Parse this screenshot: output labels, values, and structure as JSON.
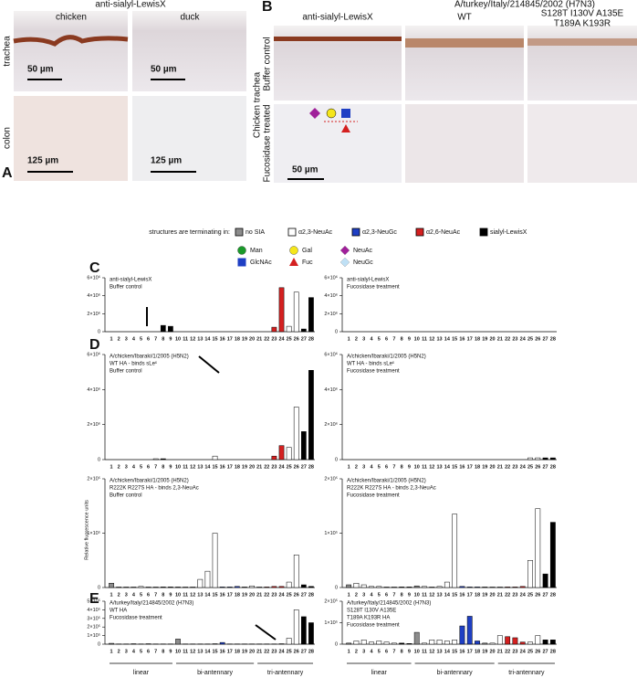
{
  "panel_a": {
    "letter": "A",
    "title": "anti-sialyl-LewisX",
    "columns": [
      "chicken",
      "duck"
    ],
    "rows": [
      "trachea",
      "colon"
    ],
    "scales": [
      "50 µm",
      "50 µm",
      "125 µm",
      "125 µm"
    ]
  },
  "panel_b": {
    "letter": "B",
    "title": "A/turkey/Italy/214845/2002 (H7N3)",
    "columns": [
      "anti-sialyl-LewisX",
      "WT",
      "S128T I130V A135E",
      "T189A K193R"
    ],
    "rows": [
      "Buffer control",
      "Fucosidase treated"
    ],
    "tissue": "Chicken trachea",
    "scale": "50 µm"
  },
  "legend": {
    "title": "structures are terminating in:",
    "items": [
      {
        "label": "no SIA",
        "color": "#8c8c8c"
      },
      {
        "label": "α2,3-NeuAc",
        "color": "#ffffff"
      },
      {
        "label": "α2,3-NeuGc",
        "color": "#1f3fc4"
      },
      {
        "label": "α2,6-NeuAc",
        "color": "#d42020"
      },
      {
        "label": "sialyl-LewisX",
        "color": "#000000"
      }
    ]
  },
  "monosaccharides": [
    {
      "label": "Man",
      "shape": "circle",
      "color": "#1a9a2a"
    },
    {
      "label": "GlcNAc",
      "shape": "square",
      "color": "#1f3fc4"
    },
    {
      "label": "Gal",
      "shape": "circle",
      "color": "#f5e61a"
    },
    {
      "label": "Fuc",
      "shape": "triangle",
      "color": "#d42020"
    },
    {
      "label": "NeuAc",
      "shape": "diamond",
      "color": "#a0209a"
    },
    {
      "label": "NeuGc",
      "shape": "diamond",
      "color": "#bfe0f5"
    }
  ],
  "panel_letters": [
    "C",
    "D",
    "E"
  ],
  "y_axis_label": "Relative fluorescence units",
  "bar_colors": [
    "#8c8c8c",
    "#ffffff",
    "#ffffff",
    "#ffffff",
    "#ffffff",
    "#ffffff",
    "#ffffff",
    "#000000",
    "#000000",
    "#8c8c8c",
    "#ffffff",
    "#ffffff",
    "#ffffff",
    "#ffffff",
    "#ffffff",
    "#1f3fc4",
    "#1f3fc4",
    "#1f3fc4",
    "#8c8c8c",
    "#ffffff",
    "#ffffff",
    "#d42020",
    "#d42020",
    "#d42020",
    "#ffffff",
    "#ffffff",
    "#000000",
    "#000000"
  ],
  "groups": [
    "linear",
    "bi-antennary",
    "tri-antennary"
  ],
  "chart_data": [
    {
      "type": "bar",
      "labels": [
        "anti-sialyl-LewisX",
        "Buffer control"
      ],
      "categories": [
        "1",
        "2",
        "3",
        "4",
        "5",
        "6",
        "7",
        "8",
        "9",
        "10",
        "11",
        "12",
        "13",
        "14",
        "15",
        "16",
        "17",
        "18",
        "19",
        "20",
        "21",
        "22",
        "23",
        "24",
        "25",
        "26",
        "27",
        "28"
      ],
      "values": [
        0,
        0,
        0,
        0,
        0,
        0,
        0,
        700000,
        600000,
        0,
        0,
        0,
        0,
        0,
        0,
        0,
        0,
        0,
        0,
        0,
        0,
        0,
        500000,
        4900000,
        600000,
        4400000,
        300000,
        3800000
      ],
      "ylim": [
        0,
        6000000
      ],
      "yticks": [
        0,
        {
          "value": 2000000,
          "label": "2×10⁶"
        },
        {
          "value": 4000000,
          "label": "4×10⁶"
        },
        {
          "value": 6000000,
          "label": "6×10⁶"
        }
      ]
    },
    {
      "type": "bar",
      "labels": [
        "anti-sialyl-LewisX",
        "Fucosidase treatment"
      ],
      "categories": [
        "1",
        "2",
        "3",
        "4",
        "5",
        "6",
        "7",
        "8",
        "9",
        "10",
        "11",
        "12",
        "13",
        "14",
        "15",
        "16",
        "17",
        "18",
        "19",
        "20",
        "21",
        "22",
        "23",
        "24",
        "25",
        "26",
        "27",
        "28"
      ],
      "values": [
        0,
        0,
        0,
        0,
        0,
        0,
        0,
        0,
        0,
        0,
        0,
        0,
        0,
        0,
        0,
        0,
        0,
        0,
        0,
        0,
        0,
        0,
        0,
        0,
        0,
        0,
        0,
        0
      ],
      "ylim": [
        0,
        6000000
      ],
      "yticks": [
        0,
        {
          "value": 2000000,
          "label": "2×10⁶"
        },
        {
          "value": 4000000,
          "label": "4×10⁶"
        },
        {
          "value": 6000000,
          "label": "6×10⁶"
        }
      ]
    },
    {
      "type": "bar",
      "labels": [
        "A/chicken/Ibaraki/1/2005 (H5N2)",
        "WT HA - binds sLeˣ",
        "Buffer control"
      ],
      "categories": [
        "1",
        "2",
        "3",
        "4",
        "5",
        "6",
        "7",
        "8",
        "9",
        "10",
        "11",
        "12",
        "13",
        "14",
        "15",
        "16",
        "17",
        "18",
        "19",
        "20",
        "21",
        "22",
        "23",
        "24",
        "25",
        "26",
        "27",
        "28"
      ],
      "values": [
        0,
        0,
        0,
        0,
        0,
        0,
        50000,
        50000,
        0,
        0,
        0,
        0,
        0,
        0,
        200000,
        0,
        0,
        0,
        0,
        0,
        0,
        0,
        200000,
        800000,
        700000,
        3000000,
        1600000,
        5100000
      ],
      "ylim": [
        0,
        6000000
      ],
      "yticks": [
        0,
        {
          "value": 2000000,
          "label": "2×10⁶"
        },
        {
          "value": 4000000,
          "label": "4×10⁶"
        },
        {
          "value": 6000000,
          "label": "6×10⁶"
        }
      ]
    },
    {
      "type": "bar",
      "labels": [
        "A/chicken/Ibaraki/1/2005 (H5N2)",
        "WT HA - binds sLeˣ",
        "Fucosidase treatment"
      ],
      "categories": [
        "1",
        "2",
        "3",
        "4",
        "5",
        "6",
        "7",
        "8",
        "9",
        "10",
        "11",
        "12",
        "13",
        "14",
        "15",
        "16",
        "17",
        "18",
        "19",
        "20",
        "21",
        "22",
        "23",
        "24",
        "25",
        "26",
        "27",
        "28"
      ],
      "values": [
        0,
        0,
        0,
        0,
        0,
        0,
        0,
        0,
        0,
        0,
        0,
        0,
        0,
        0,
        0,
        0,
        0,
        0,
        0,
        0,
        0,
        0,
        0,
        0,
        100000,
        100000,
        100000,
        100000
      ],
      "ylim": [
        0,
        6000000
      ],
      "yticks": [
        0,
        {
          "value": 2000000,
          "label": "2×10⁶"
        },
        {
          "value": 4000000,
          "label": "4×10⁶"
        },
        {
          "value": 6000000,
          "label": "6×10⁶"
        }
      ]
    },
    {
      "type": "bar",
      "labels": [
        "A/chicken/Ibaraki/1/2005 (H5N2)",
        "R222K R227S HA - binds 2,3-NeuAc",
        "Buffer control"
      ],
      "categories": [
        "1",
        "2",
        "3",
        "4",
        "5",
        "6",
        "7",
        "8",
        "9",
        "10",
        "11",
        "12",
        "13",
        "14",
        "15",
        "16",
        "17",
        "18",
        "19",
        "20",
        "21",
        "22",
        "23",
        "24",
        "25",
        "26",
        "27",
        "28"
      ],
      "values": [
        8000,
        1000,
        1000,
        1000,
        2000,
        1000,
        1000,
        1000,
        1000,
        1000,
        1000,
        1000,
        15000,
        30000,
        100000,
        1000,
        1000,
        2000,
        1000,
        3000,
        1000,
        1000,
        2000,
        2000,
        10000,
        60000,
        5000,
        2000
      ],
      "ylim": [
        0,
        200000
      ],
      "yticks": [
        0,
        {
          "value": 100000,
          "label": "1×10⁵"
        },
        {
          "value": 200000,
          "label": "2×10⁵"
        }
      ]
    },
    {
      "type": "bar",
      "labels": [
        "A/chicken/Ibaraki/1/2005 (H5N2)",
        "R222K R227S HA - binds 2,3-NeuAc",
        "Fucosidase treatment"
      ],
      "categories": [
        "1",
        "2",
        "3",
        "4",
        "5",
        "6",
        "7",
        "8",
        "9",
        "10",
        "11",
        "12",
        "13",
        "14",
        "15",
        "16",
        "17",
        "18",
        "19",
        "20",
        "21",
        "22",
        "23",
        "24",
        "25",
        "26",
        "27",
        "28"
      ],
      "values": [
        5000,
        8000,
        5000,
        2000,
        2000,
        1000,
        1000,
        1000,
        1000,
        3000,
        2000,
        1000,
        2000,
        10000,
        135000,
        2000,
        1000,
        1000,
        1000,
        1000,
        1000,
        1000,
        1000,
        2000,
        50000,
        145000,
        25000,
        120000
      ],
      "ylim": [
        0,
        200000
      ],
      "yticks": [
        0,
        {
          "value": 100000,
          "label": "1×10⁵"
        },
        {
          "value": 200000,
          "label": "2×10⁵"
        }
      ]
    },
    {
      "type": "bar",
      "labels": [
        "A/turkey/Italy/214845/2002 (H7N3)",
        "WT HA",
        "Fucosidase treatment"
      ],
      "categories": [
        "1",
        "2",
        "3",
        "4",
        "5",
        "6",
        "7",
        "8",
        "9",
        "10",
        "11",
        "12",
        "13",
        "14",
        "15",
        "16",
        "17",
        "18",
        "19",
        "20",
        "21",
        "22",
        "23",
        "24",
        "25",
        "26",
        "27",
        "28"
      ],
      "values": [
        10000,
        3000,
        3000,
        5000,
        3000,
        5000,
        3000,
        3000,
        3000,
        60000,
        3000,
        3000,
        3000,
        3000,
        5000,
        20000,
        3000,
        3000,
        3000,
        3000,
        3000,
        3000,
        3000,
        5000,
        70000,
        400000,
        320000,
        250000
      ],
      "ylim": [
        0,
        500000
      ],
      "yticks": [
        0,
        {
          "value": 100000,
          "label": "1×10⁵"
        },
        {
          "value": 200000,
          "label": "2×10⁵"
        },
        {
          "value": 300000,
          "label": "3×10⁵"
        },
        {
          "value": 400000,
          "label": "4×10⁵"
        },
        {
          "value": 500000,
          "label": "5×10⁵"
        }
      ]
    },
    {
      "type": "bar",
      "labels": [
        "A/turkey/Italy/214845/2002 (H7N3)",
        "S128T I130V A135E",
        "T189A K193R HA",
        "Fucosidase treatment"
      ],
      "categories": [
        "1",
        "2",
        "3",
        "4",
        "5",
        "6",
        "7",
        "8",
        "9",
        "10",
        "11",
        "12",
        "13",
        "14",
        "15",
        "16",
        "17",
        "18",
        "19",
        "20",
        "21",
        "22",
        "23",
        "24",
        "25",
        "26",
        "27",
        "28"
      ],
      "values": [
        5000,
        15000,
        20000,
        10000,
        15000,
        10000,
        5000,
        5000,
        3000,
        55000,
        5000,
        20000,
        20000,
        15000,
        20000,
        85000,
        130000,
        15000,
        5000,
        5000,
        40000,
        35000,
        30000,
        10000,
        10000,
        40000,
        20000,
        20000
      ],
      "ylim": [
        0,
        200000
      ],
      "yticks": [
        0,
        {
          "value": 100000,
          "label": "1×10⁵"
        },
        {
          "value": 200000,
          "label": "2×10⁵"
        }
      ]
    }
  ]
}
